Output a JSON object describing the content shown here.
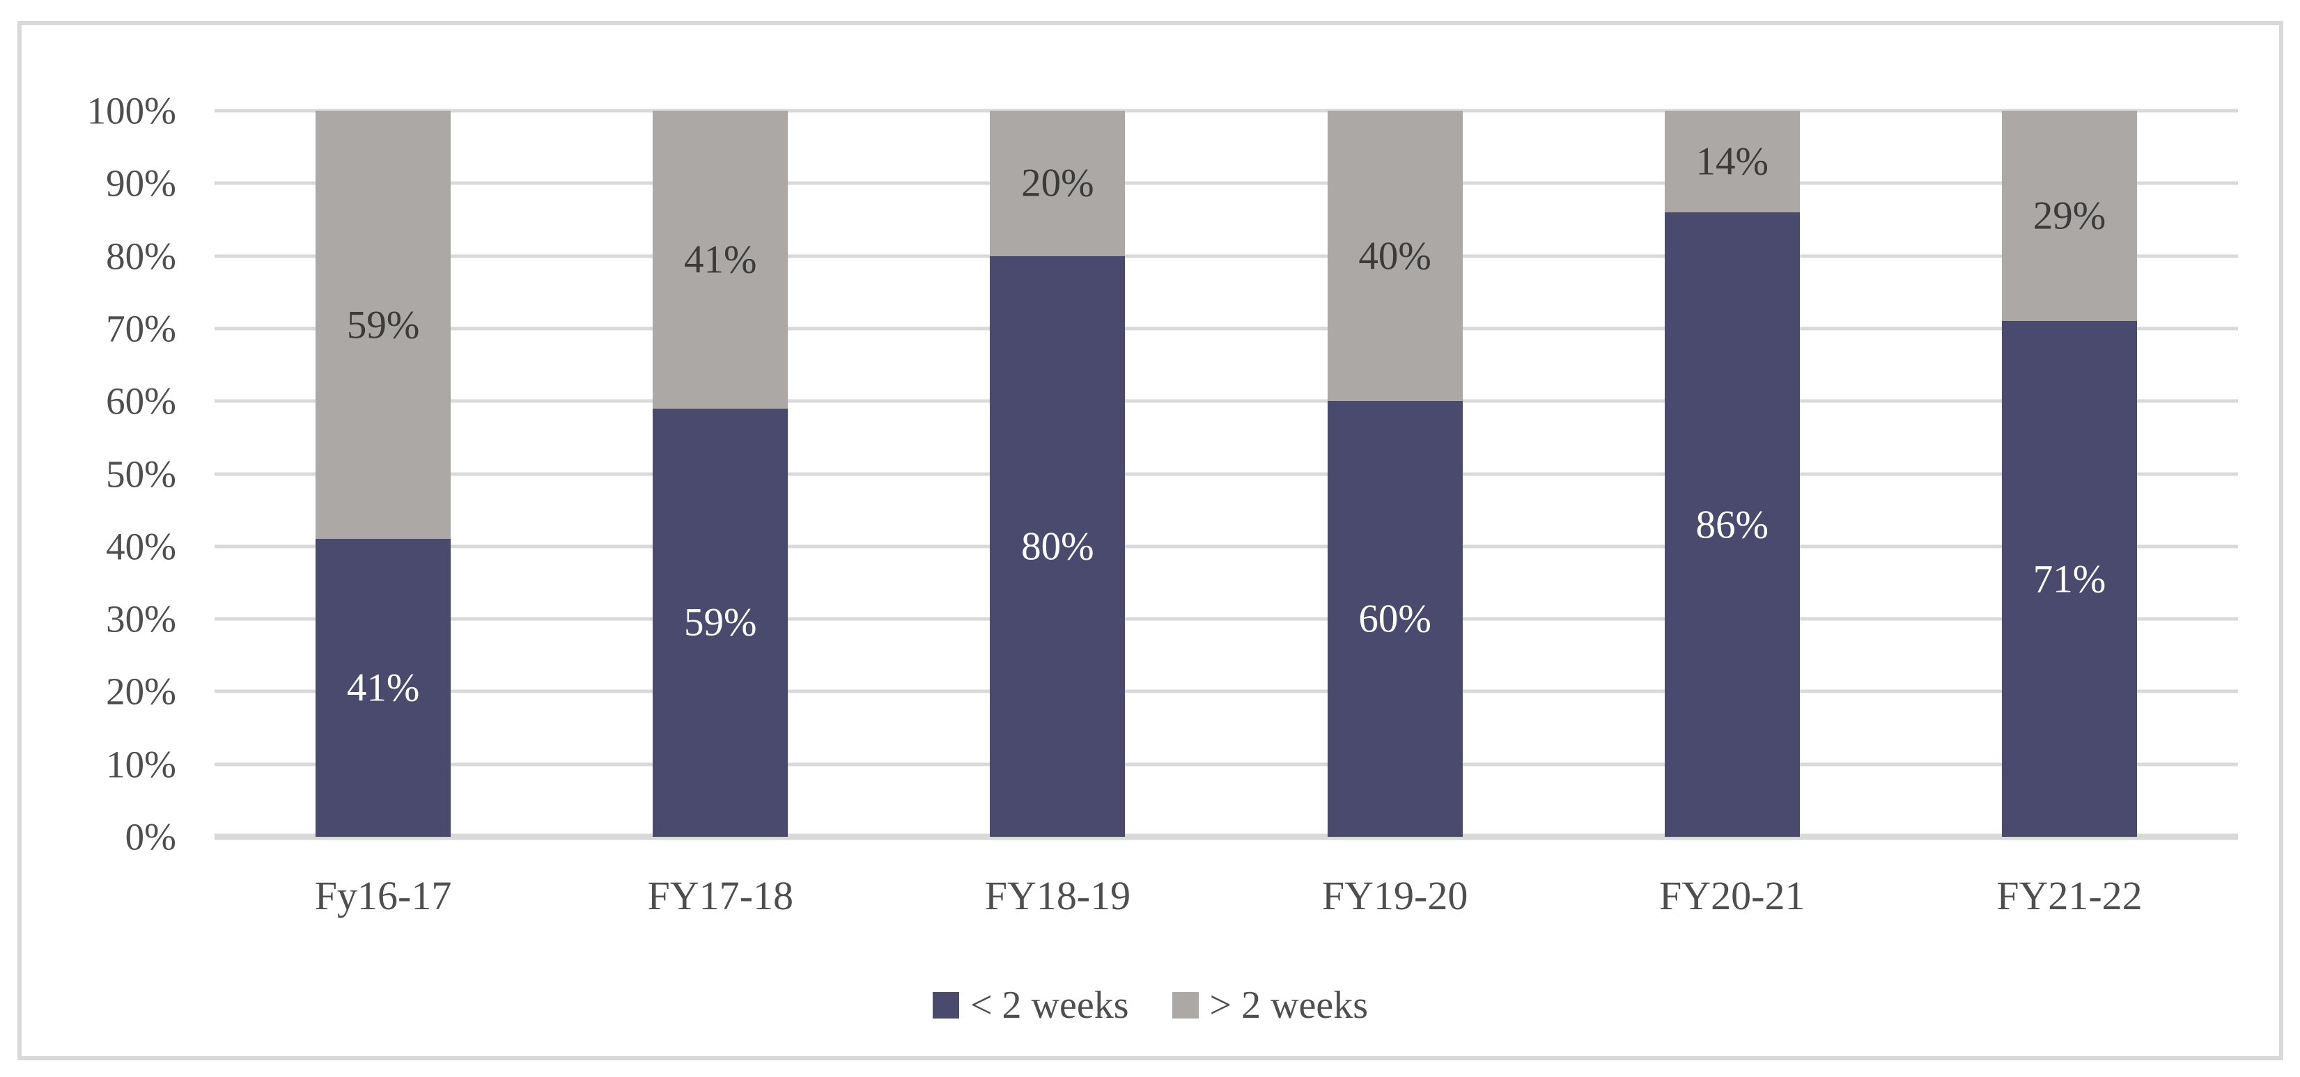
{
  "chart_data": {
    "type": "bar",
    "stacked": true,
    "orientation": "vertical",
    "categories": [
      "Fy16-17",
      "FY17-18",
      "FY18-19",
      "FY19-20",
      "FY20-21",
      "FY21-22"
    ],
    "series": [
      {
        "name": "< 2 weeks",
        "color": "#4a4a6e",
        "label_color": "#ffffff",
        "values": [
          41,
          59,
          80,
          60,
          86,
          71
        ]
      },
      {
        "name": "> 2 weeks",
        "color": "#aca8a5",
        "label_color": "#3b3b3b",
        "values": [
          59,
          41,
          20,
          40,
          14,
          29
        ]
      }
    ],
    "value_suffix": "%",
    "data_labels": true,
    "yticks": [
      0,
      10,
      20,
      30,
      40,
      50,
      60,
      70,
      80,
      90,
      100
    ],
    "ylim": [
      0,
      100
    ],
    "ytick_suffix": "%",
    "xlabel": "",
    "ylabel": "",
    "title": "",
    "grid": true,
    "gridline_color": "#d9d9d9",
    "axis_text_color": "#4e4e4e",
    "legend_position": "bottom-center",
    "plot_border_color": "#d9d9d9",
    "background_color": "#ffffff"
  }
}
